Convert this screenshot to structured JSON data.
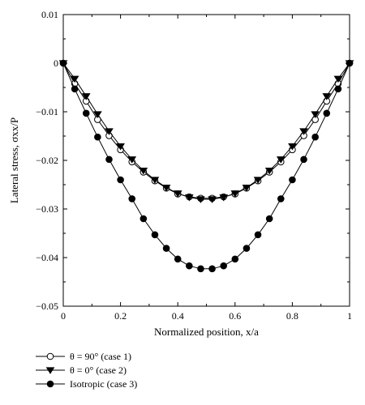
{
  "chart_data": {
    "type": "line",
    "xlabel": "Normalized position, x/a",
    "ylabel": "Lateral stress, σxx/P",
    "xlim": [
      0,
      1
    ],
    "ylim": [
      -0.05,
      0.01
    ],
    "xticks": [
      0,
      0.2,
      0.4,
      0.6,
      0.8,
      1
    ],
    "xtick_labels": [
      "0",
      "0.2",
      "0.4",
      "0.6",
      "0.8",
      "1"
    ],
    "yticks": [
      0.01,
      0,
      -0.01,
      -0.02,
      -0.03,
      -0.04,
      -0.05
    ],
    "ytick_labels": [
      "0.01",
      "0",
      "−0.01",
      "−0.02",
      "−0.03",
      "−0.04",
      "−0.05"
    ],
    "grid": false,
    "legend_position": "below-left",
    "series": [
      {
        "name": "θ = 90° (case 1)",
        "marker": "open-circle",
        "x": [
          0,
          0.04,
          0.08,
          0.12,
          0.16,
          0.2,
          0.24,
          0.28,
          0.32,
          0.36,
          0.4,
          0.44,
          0.48,
          0.52,
          0.56,
          0.6,
          0.64,
          0.68,
          0.72,
          0.76,
          0.8,
          0.84,
          0.88,
          0.92,
          0.96,
          1
        ],
        "y": [
          0,
          -0.0042,
          -0.0078,
          -0.0116,
          -0.0149,
          -0.0178,
          -0.0203,
          -0.0224,
          -0.0242,
          -0.0257,
          -0.0269,
          -0.0275,
          -0.0278,
          -0.0278,
          -0.0275,
          -0.0269,
          -0.0257,
          -0.0242,
          -0.0224,
          -0.0203,
          -0.0178,
          -0.0149,
          -0.0116,
          -0.0078,
          -0.0042,
          0
        ]
      },
      {
        "name": "θ = 0° (case 2)",
        "marker": "filled-triangle-down",
        "x": [
          0,
          0.04,
          0.08,
          0.12,
          0.16,
          0.2,
          0.24,
          0.28,
          0.32,
          0.36,
          0.4,
          0.44,
          0.48,
          0.52,
          0.56,
          0.6,
          0.64,
          0.68,
          0.72,
          0.76,
          0.8,
          0.84,
          0.88,
          0.92,
          0.96,
          1
        ],
        "y": [
          0,
          -0.0032,
          -0.0068,
          -0.0105,
          -0.014,
          -0.0171,
          -0.0198,
          -0.0221,
          -0.024,
          -0.0256,
          -0.0268,
          -0.0276,
          -0.028,
          -0.028,
          -0.0276,
          -0.0268,
          -0.0256,
          -0.024,
          -0.0221,
          -0.0198,
          -0.0171,
          -0.014,
          -0.0105,
          -0.0068,
          -0.0032,
          0
        ]
      },
      {
        "name": "Isotropic (case 3)",
        "marker": "filled-circle",
        "x": [
          0,
          0.04,
          0.08,
          0.12,
          0.16,
          0.2,
          0.24,
          0.28,
          0.32,
          0.36,
          0.4,
          0.44,
          0.48,
          0.52,
          0.56,
          0.6,
          0.64,
          0.68,
          0.72,
          0.76,
          0.8,
          0.84,
          0.88,
          0.92,
          0.96,
          1
        ],
        "y": [
          0,
          -0.0053,
          -0.0103,
          -0.0152,
          -0.0198,
          -0.024,
          -0.0279,
          -0.032,
          -0.0353,
          -0.0381,
          -0.0403,
          -0.0417,
          -0.0423,
          -0.0423,
          -0.0417,
          -0.0403,
          -0.0381,
          -0.0353,
          -0.032,
          -0.0279,
          -0.024,
          -0.0198,
          -0.0152,
          -0.0103,
          -0.0053,
          0
        ]
      }
    ]
  }
}
